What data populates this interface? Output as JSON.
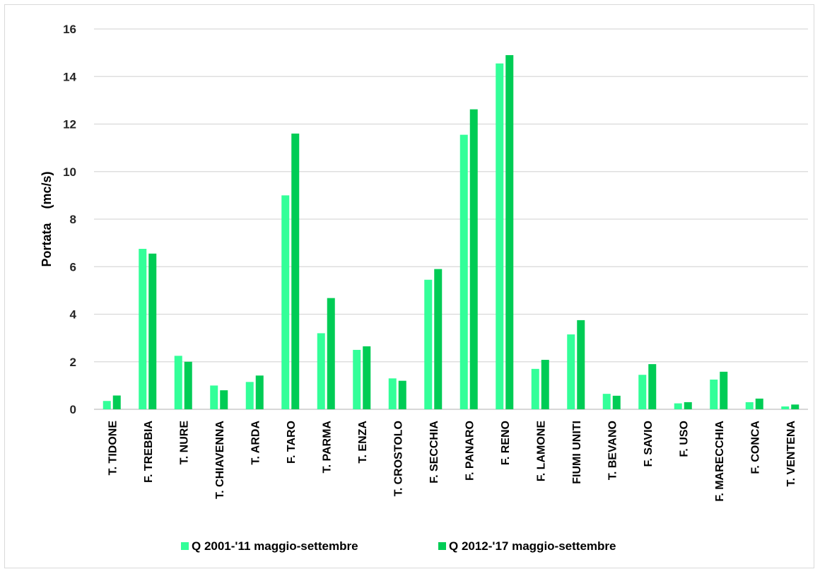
{
  "chart_data": {
    "type": "bar",
    "title": "",
    "xlabel": "",
    "ylabel": "Portata    (mc/s)",
    "ylim": [
      0,
      16
    ],
    "yticks": [
      "0",
      "2",
      "4",
      "6",
      "8",
      "10",
      "12",
      "14",
      "16"
    ],
    "grid": true,
    "legend_position": "bottom",
    "categories": [
      "T. TIDONE",
      "F. TREBBIA",
      "T. NURE",
      "T. CHIAVENNA",
      "T. ARDA",
      "F. TARO",
      "T. PARMA",
      "T. ENZA",
      "T. CROSTOLO",
      "F. SECCHIA",
      "F. PANARO",
      "F. RENO",
      "F. LAMONE",
      "FIUMI UNITI",
      "T. BEVANO",
      "F. SAVIO",
      "F. USO",
      "F. MARECCHIA",
      "F. CONCA",
      "T. VENTENA"
    ],
    "series": [
      {
        "name": "Q 2001-'11 maggio-settembre",
        "color": "#33ff99",
        "values": [
          0.35,
          6.75,
          2.25,
          1.0,
          1.15,
          9.0,
          3.2,
          2.5,
          1.3,
          5.45,
          11.55,
          14.55,
          1.7,
          3.15,
          0.65,
          1.45,
          0.25,
          1.25,
          0.3,
          0.12
        ]
      },
      {
        "name": "Q 2012-'17 maggio-settembre",
        "color": "#00cc55",
        "values": [
          0.58,
          6.55,
          2.0,
          0.8,
          1.42,
          11.6,
          4.68,
          2.65,
          1.2,
          5.9,
          12.62,
          14.9,
          2.08,
          3.75,
          0.57,
          1.9,
          0.3,
          1.58,
          0.45,
          0.2
        ]
      }
    ]
  }
}
